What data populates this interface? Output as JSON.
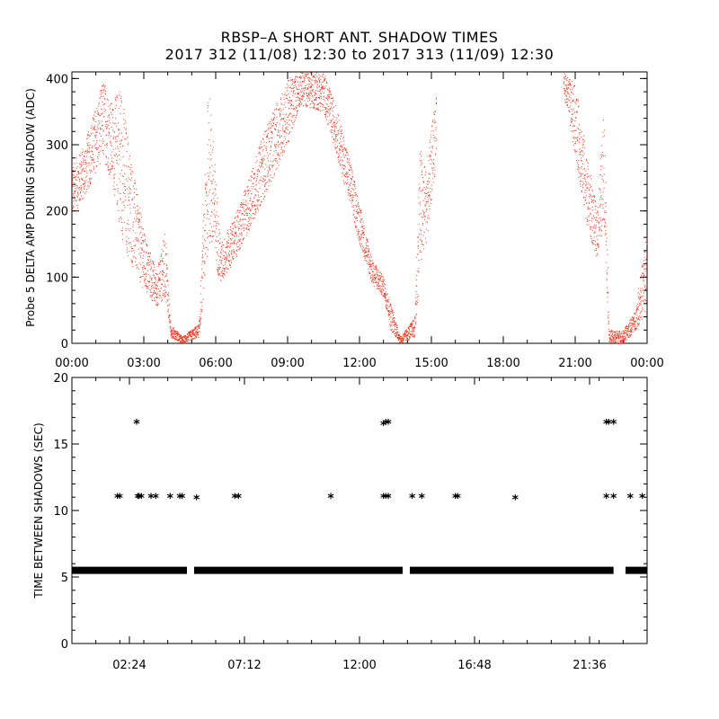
{
  "title_line1": "RBSP–A SHORT ANT. SHADOW TIMES",
  "title_line2": "2017 312 (11/08) 12:30 to 2017 313 (11/09) 12:30",
  "colors": {
    "top_points": "#e8371e",
    "bottom_points": "#000000"
  },
  "chart_data": [
    {
      "type": "scatter",
      "ylabel": "Probe 5 DELTA AMP DURING SHADOW (ADC)",
      "xlabel": "",
      "xlim": [
        0,
        24
      ],
      "ylim": [
        0,
        410
      ],
      "yticks": [
        0,
        100,
        200,
        300,
        400
      ],
      "xtick_labels": [
        "00:00",
        "03:00",
        "06:00",
        "09:00",
        "12:00",
        "15:00",
        "18:00",
        "21:00",
        "00:00"
      ],
      "xtick_values": [
        0,
        3,
        6,
        9,
        12,
        15,
        18,
        21,
        24
      ],
      "series_envelope": [
        {
          "hour": 0.0,
          "low": 190,
          "high": 270
        },
        {
          "hour": 0.5,
          "low": 220,
          "high": 300
        },
        {
          "hour": 1.0,
          "low": 260,
          "high": 360
        },
        {
          "hour": 1.3,
          "low": 280,
          "high": 400
        },
        {
          "hour": 1.7,
          "low": 240,
          "high": 360
        },
        {
          "hour": 2.0,
          "low": 170,
          "high": 400
        },
        {
          "hour": 2.3,
          "low": 130,
          "high": 320
        },
        {
          "hour": 2.6,
          "low": 110,
          "high": 250
        },
        {
          "hour": 3.0,
          "low": 80,
          "high": 170
        },
        {
          "hour": 3.5,
          "low": 55,
          "high": 110
        },
        {
          "hour": 3.9,
          "low": 70,
          "high": 170
        },
        {
          "hour": 4.1,
          "low": 10,
          "high": 30
        },
        {
          "hour": 4.6,
          "low": 0,
          "high": 10
        },
        {
          "hour": 5.3,
          "low": 10,
          "high": 30
        },
        {
          "hour": 5.7,
          "low": 150,
          "high": 400
        },
        {
          "hour": 6.2,
          "low": 90,
          "high": 150
        },
        {
          "hour": 7.0,
          "low": 140,
          "high": 210
        },
        {
          "hour": 8.0,
          "low": 220,
          "high": 320
        },
        {
          "hour": 9.0,
          "low": 300,
          "high": 400
        },
        {
          "hour": 9.5,
          "low": 360,
          "high": 410
        },
        {
          "hour": 10.5,
          "low": 350,
          "high": 410
        },
        {
          "hour": 11.0,
          "low": 290,
          "high": 360
        },
        {
          "hour": 11.5,
          "low": 220,
          "high": 290
        },
        {
          "hour": 12.0,
          "low": 150,
          "high": 210
        },
        {
          "hour": 12.5,
          "low": 90,
          "high": 130
        },
        {
          "hour": 13.0,
          "low": 70,
          "high": 100
        },
        {
          "hour": 13.3,
          "low": 20,
          "high": 60
        },
        {
          "hour": 13.7,
          "low": 0,
          "high": 10
        },
        {
          "hour": 14.3,
          "low": 10,
          "high": 40
        },
        {
          "hour": 14.5,
          "low": 100,
          "high": 300
        },
        {
          "hour": 14.8,
          "low": 160,
          "high": 260
        },
        {
          "hour": 15.2,
          "low": 280,
          "high": 400
        },
        {
          "hour": 20.5,
          "low": 380,
          "high": 410
        },
        {
          "hour": 21.0,
          "low": 280,
          "high": 390
        },
        {
          "hour": 21.5,
          "low": 170,
          "high": 280
        },
        {
          "hour": 21.9,
          "low": 130,
          "high": 200
        },
        {
          "hour": 22.2,
          "low": 180,
          "high": 360
        },
        {
          "hour": 22.4,
          "low": 0,
          "high": 20
        },
        {
          "hour": 23.0,
          "low": 0,
          "high": 20
        },
        {
          "hour": 23.5,
          "low": 20,
          "high": 50
        },
        {
          "hour": 24.0,
          "low": 50,
          "high": 180
        }
      ]
    },
    {
      "type": "scatter",
      "ylabel": "TIME BETWEEN SHADOWS (SEC)",
      "xlabel": "",
      "xlim": [
        0,
        24
      ],
      "ylim": [
        0,
        20
      ],
      "yticks": [
        0,
        5,
        10,
        15,
        20
      ],
      "xtick_labels": [
        "02:24",
        "07:12",
        "12:00",
        "16:48",
        "21:36"
      ],
      "xtick_values": [
        2.4,
        7.2,
        12.0,
        16.8,
        21.6
      ],
      "baseline_value": 5.5,
      "baseline_segments": [
        [
          0.0,
          4.8
        ],
        [
          5.1,
          13.8
        ],
        [
          14.1,
          22.6
        ],
        [
          23.1,
          24.0
        ]
      ],
      "points": [
        {
          "x": 1.9,
          "y": 11
        },
        {
          "x": 2.0,
          "y": 11
        },
        {
          "x": 2.7,
          "y": 16.6
        },
        {
          "x": 2.75,
          "y": 11
        },
        {
          "x": 2.8,
          "y": 11
        },
        {
          "x": 2.9,
          "y": 11
        },
        {
          "x": 3.3,
          "y": 11
        },
        {
          "x": 3.5,
          "y": 11
        },
        {
          "x": 4.1,
          "y": 11
        },
        {
          "x": 4.5,
          "y": 11
        },
        {
          "x": 4.6,
          "y": 11
        },
        {
          "x": 5.2,
          "y": 10.9
        },
        {
          "x": 6.8,
          "y": 11
        },
        {
          "x": 6.95,
          "y": 11
        },
        {
          "x": 10.8,
          "y": 11
        },
        {
          "x": 13.0,
          "y": 16.5
        },
        {
          "x": 13.1,
          "y": 16.6
        },
        {
          "x": 13.2,
          "y": 16.6
        },
        {
          "x": 13.0,
          "y": 11
        },
        {
          "x": 13.1,
          "y": 11
        },
        {
          "x": 13.2,
          "y": 11
        },
        {
          "x": 14.2,
          "y": 11
        },
        {
          "x": 14.6,
          "y": 11
        },
        {
          "x": 16.0,
          "y": 11
        },
        {
          "x": 16.1,
          "y": 11
        },
        {
          "x": 18.5,
          "y": 10.9
        },
        {
          "x": 22.3,
          "y": 16.6
        },
        {
          "x": 22.4,
          "y": 16.6
        },
        {
          "x": 22.6,
          "y": 16.6
        },
        {
          "x": 22.3,
          "y": 11
        },
        {
          "x": 22.6,
          "y": 11
        },
        {
          "x": 23.3,
          "y": 11
        },
        {
          "x": 23.8,
          "y": 11
        }
      ]
    }
  ]
}
